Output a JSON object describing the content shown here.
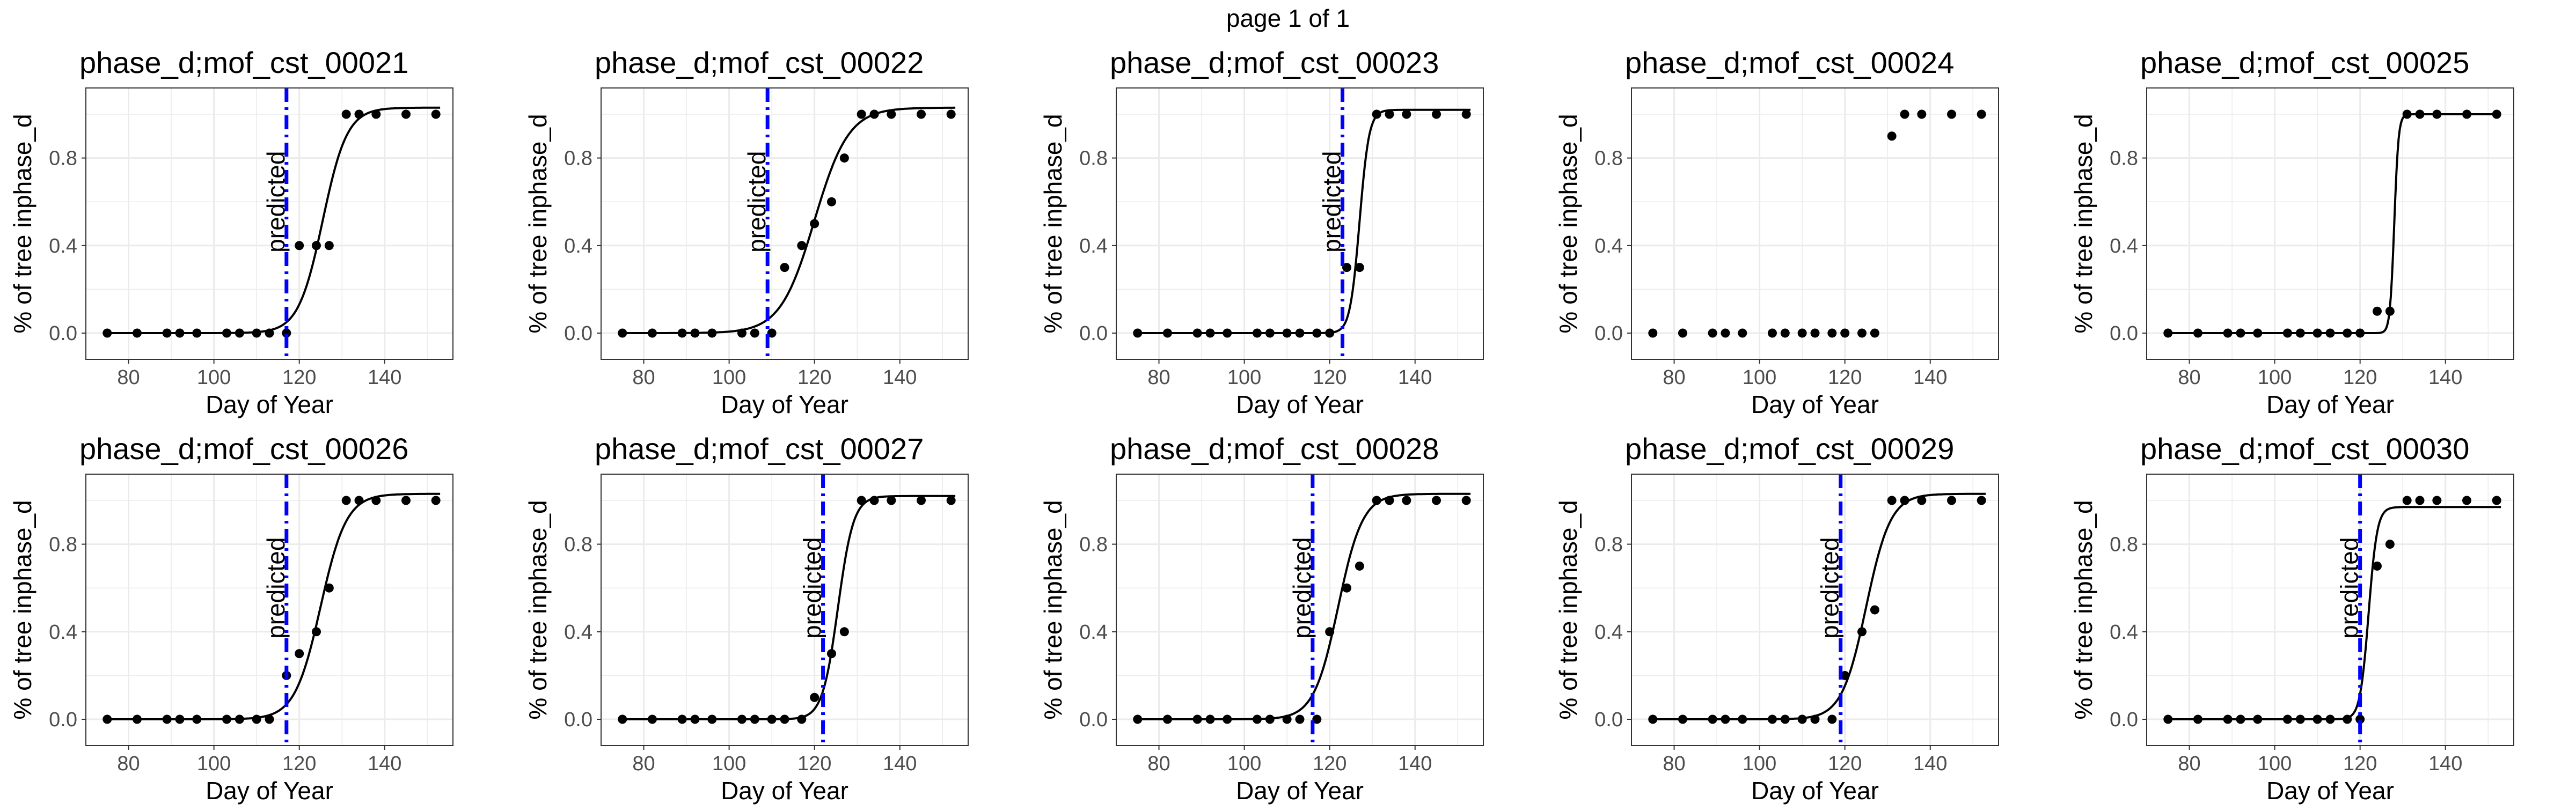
{
  "page_title": "page 1 of 1",
  "colors": {
    "prediction_line": "#0000ff",
    "points": "#000000",
    "curve": "#000000",
    "grid": "#ebebeb",
    "border": "#333333"
  },
  "chart_data": [
    {
      "type": "scatter",
      "title": "phase_d;mof_cst_00021",
      "xlabel": "Day of Year",
      "ylabel": "% of tree inphase_d",
      "xlim": [
        70,
        156
      ],
      "ylim": [
        -0.12,
        1.12
      ],
      "xticks": [
        80,
        100,
        120,
        140
      ],
      "yticks": [
        "0.0",
        "0.4",
        "0.8"
      ],
      "grid": true,
      "x": [
        75,
        82,
        89,
        92,
        96,
        103,
        106,
        110,
        113,
        117,
        120,
        124,
        127,
        131,
        134,
        138,
        145,
        152
      ],
      "y": [
        0,
        0,
        0,
        0,
        0,
        0,
        0,
        0,
        0,
        0,
        0.4,
        0.4,
        0.4,
        1.0,
        1.0,
        1.0,
        1.0,
        1.0
      ],
      "fit_curve": {
        "midpoint": 125.5,
        "slope": 0.35,
        "upper": 1.03
      },
      "predicted_day": 117,
      "annotation": "predicted"
    },
    {
      "type": "scatter",
      "title": "phase_d;mof_cst_00022",
      "xlabel": "Day of Year",
      "ylabel": "% of tree inphase_d",
      "xlim": [
        70,
        156
      ],
      "ylim": [
        -0.12,
        1.12
      ],
      "xticks": [
        80,
        100,
        120,
        140
      ],
      "yticks": [
        "0.0",
        "0.4",
        "0.8"
      ],
      "grid": true,
      "x": [
        75,
        82,
        89,
        92,
        96,
        103,
        106,
        110,
        113,
        117,
        120,
        124,
        127,
        131,
        134,
        138,
        145,
        152
      ],
      "y": [
        0,
        0,
        0,
        0,
        0,
        0,
        0,
        0,
        0.3,
        0.4,
        0.5,
        0.6,
        0.8,
        1.0,
        1.0,
        1.0,
        1.0,
        1.0
      ],
      "fit_curve": {
        "midpoint": 120.0,
        "slope": 0.25,
        "upper": 1.03
      },
      "predicted_day": 109,
      "annotation": "predicted"
    },
    {
      "type": "scatter",
      "title": "phase_d;mof_cst_00023",
      "xlabel": "Day of Year",
      "ylabel": "% of tree inphase_d",
      "xlim": [
        70,
        156
      ],
      "ylim": [
        -0.12,
        1.12
      ],
      "xticks": [
        80,
        100,
        120,
        140
      ],
      "yticks": [
        "0.0",
        "0.4",
        "0.8"
      ],
      "grid": true,
      "x": [
        75,
        82,
        89,
        92,
        96,
        103,
        106,
        110,
        113,
        117,
        120,
        124,
        127,
        131,
        134,
        138,
        145,
        152
      ],
      "y": [
        0,
        0,
        0,
        0,
        0,
        0,
        0,
        0,
        0,
        0,
        0,
        0.3,
        0.3,
        1.0,
        1.0,
        1.0,
        1.0,
        1.0
      ],
      "fit_curve": {
        "midpoint": 127.0,
        "slope": 0.9,
        "upper": 1.02
      },
      "predicted_day": 123,
      "annotation": "predicted"
    },
    {
      "type": "scatter",
      "title": "phase_d;mof_cst_00024",
      "xlabel": "Day of Year",
      "ylabel": "% of tree inphase_d",
      "xlim": [
        70,
        156
      ],
      "ylim": [
        -0.12,
        1.12
      ],
      "xticks": [
        80,
        100,
        120,
        140
      ],
      "yticks": [
        "0.0",
        "0.4",
        "0.8"
      ],
      "grid": true,
      "x": [
        75,
        82,
        89,
        92,
        96,
        103,
        106,
        110,
        113,
        117,
        120,
        124,
        127,
        131,
        134,
        138,
        145,
        152
      ],
      "y": [
        0,
        0,
        0,
        0,
        0,
        0,
        0,
        0,
        0,
        0,
        0,
        0,
        0,
        0.9,
        1.0,
        1.0,
        1.0,
        1.0
      ]
    },
    {
      "type": "scatter",
      "title": "phase_d;mof_cst_00025",
      "xlabel": "Day of Year",
      "ylabel": "% of tree inphase_d",
      "xlim": [
        70,
        156
      ],
      "ylim": [
        -0.12,
        1.12
      ],
      "xticks": [
        80,
        100,
        120,
        140
      ],
      "yticks": [
        "0.0",
        "0.4",
        "0.8"
      ],
      "grid": true,
      "x": [
        75,
        82,
        89,
        92,
        96,
        103,
        106,
        110,
        113,
        117,
        120,
        124,
        127,
        131,
        134,
        138,
        145,
        152
      ],
      "y": [
        0,
        0,
        0,
        0,
        0,
        0,
        0,
        0,
        0,
        0,
        0,
        0.1,
        0.1,
        1.0,
        1.0,
        1.0,
        1.0,
        1.0
      ],
      "fit_curve": {
        "midpoint": 128.0,
        "slope": 2.0,
        "upper": 1.0
      }
    },
    {
      "type": "scatter",
      "title": "phase_d;mof_cst_00026",
      "xlabel": "Day of Year",
      "ylabel": "% of tree inphase_d",
      "xlim": [
        70,
        156
      ],
      "ylim": [
        -0.12,
        1.12
      ],
      "xticks": [
        80,
        100,
        120,
        140
      ],
      "yticks": [
        "0.0",
        "0.4",
        "0.8"
      ],
      "grid": true,
      "x": [
        75,
        82,
        89,
        92,
        96,
        103,
        106,
        110,
        113,
        117,
        120,
        124,
        127,
        131,
        134,
        138,
        145,
        152
      ],
      "y": [
        0,
        0,
        0,
        0,
        0,
        0,
        0,
        0,
        0,
        0.2,
        0.3,
        0.4,
        0.6,
        1.0,
        1.0,
        1.0,
        1.0,
        1.0
      ],
      "fit_curve": {
        "midpoint": 125.0,
        "slope": 0.33,
        "upper": 1.03
      },
      "predicted_day": 117,
      "annotation": "predicted"
    },
    {
      "type": "scatter",
      "title": "phase_d;mof_cst_00027",
      "xlabel": "Day of Year",
      "ylabel": "% of tree inphase_d",
      "xlim": [
        70,
        156
      ],
      "ylim": [
        -0.12,
        1.12
      ],
      "xticks": [
        80,
        100,
        120,
        140
      ],
      "yticks": [
        "0.0",
        "0.4",
        "0.8"
      ],
      "grid": true,
      "x": [
        75,
        82,
        89,
        92,
        96,
        103,
        106,
        110,
        113,
        117,
        120,
        124,
        127,
        131,
        134,
        138,
        145,
        152
      ],
      "y": [
        0,
        0,
        0,
        0,
        0,
        0,
        0,
        0,
        0,
        0,
        0.1,
        0.3,
        0.4,
        1.0,
        1.0,
        1.0,
        1.0,
        1.0
      ],
      "fit_curve": {
        "midpoint": 125.5,
        "slope": 0.55,
        "upper": 1.02
      },
      "predicted_day": 122,
      "annotation": "predicted"
    },
    {
      "type": "scatter",
      "title": "phase_d;mof_cst_00028",
      "xlabel": "Day of Year",
      "ylabel": "% of tree inphase_d",
      "xlim": [
        70,
        156
      ],
      "ylim": [
        -0.12,
        1.12
      ],
      "xticks": [
        80,
        100,
        120,
        140
      ],
      "yticks": [
        "0.0",
        "0.4",
        "0.8"
      ],
      "grid": true,
      "x": [
        75,
        82,
        89,
        92,
        96,
        103,
        106,
        110,
        113,
        117,
        120,
        124,
        127,
        131,
        134,
        138,
        145,
        152
      ],
      "y": [
        0,
        0,
        0,
        0,
        0,
        0,
        0,
        0,
        0,
        0,
        0.4,
        0.6,
        0.7,
        1.0,
        1.0,
        1.0,
        1.0,
        1.0
      ],
      "fit_curve": {
        "midpoint": 122.0,
        "slope": 0.35,
        "upper": 1.03
      },
      "predicted_day": 116,
      "annotation": "predicted"
    },
    {
      "type": "scatter",
      "title": "phase_d;mof_cst_00029",
      "xlabel": "Day of Year",
      "ylabel": "% of tree inphase_d",
      "xlim": [
        70,
        156
      ],
      "ylim": [
        -0.12,
        1.12
      ],
      "xticks": [
        80,
        100,
        120,
        140
      ],
      "yticks": [
        "0.0",
        "0.4",
        "0.8"
      ],
      "grid": true,
      "x": [
        75,
        82,
        89,
        92,
        96,
        103,
        106,
        110,
        113,
        117,
        120,
        124,
        127,
        131,
        134,
        138,
        145,
        152
      ],
      "y": [
        0,
        0,
        0,
        0,
        0,
        0,
        0,
        0,
        0,
        0,
        0.2,
        0.4,
        0.5,
        1.0,
        1.0,
        1.0,
        1.0,
        1.0
      ],
      "fit_curve": {
        "midpoint": 125.0,
        "slope": 0.35,
        "upper": 1.03
      },
      "predicted_day": 119,
      "annotation": "predicted"
    },
    {
      "type": "scatter",
      "title": "phase_d;mof_cst_00030",
      "xlabel": "Day of Year",
      "ylabel": "% of tree inphase_d",
      "xlim": [
        70,
        156
      ],
      "ylim": [
        -0.12,
        1.12
      ],
      "xticks": [
        80,
        100,
        120,
        140
      ],
      "yticks": [
        "0.0",
        "0.4",
        "0.8"
      ],
      "grid": true,
      "x": [
        75,
        82,
        89,
        92,
        96,
        103,
        106,
        110,
        113,
        117,
        120,
        124,
        127,
        131,
        134,
        138,
        145,
        152
      ],
      "y": [
        0,
        0,
        0,
        0,
        0,
        0,
        0,
        0,
        0,
        0,
        0,
        0.7,
        0.8,
        1.0,
        1.0,
        1.0,
        1.0,
        1.0
      ],
      "fit_curve": {
        "midpoint": 122.0,
        "slope": 1.0,
        "upper": 0.97
      },
      "predicted_day": 120,
      "annotation": "predicted"
    }
  ]
}
